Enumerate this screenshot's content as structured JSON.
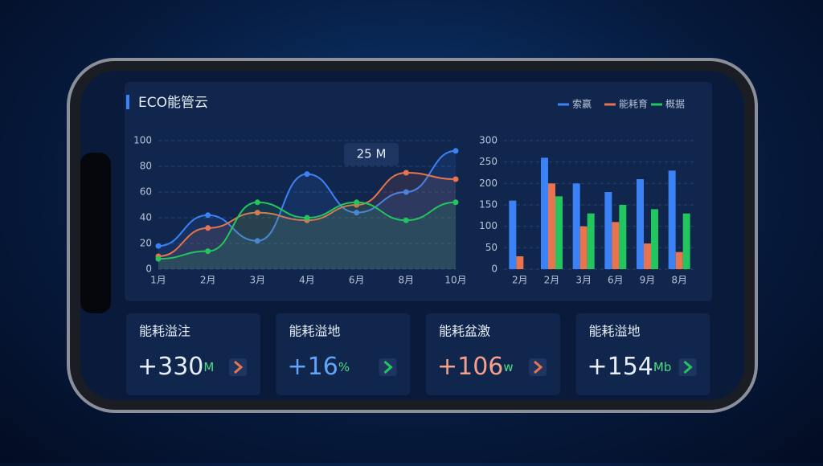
{
  "header": {
    "title": "ECO能管云"
  },
  "chart_data": [
    {
      "type": "line",
      "categories": [
        "1月",
        "2月",
        "3月",
        "4月",
        "6月",
        "8月",
        "10月"
      ],
      "series": [
        {
          "name": "索赢",
          "color": "#3b82f6",
          "values": [
            18,
            42,
            22,
            74,
            44,
            60,
            92
          ]
        },
        {
          "name": "能耗育",
          "color": "#e8744f",
          "values": [
            10,
            32,
            44,
            38,
            50,
            75,
            70
          ]
        },
        {
          "name": "概据",
          "color": "#22c55e",
          "values": [
            8,
            14,
            52,
            40,
            52,
            38,
            52
          ]
        }
      ],
      "ylim": [
        0,
        100
      ],
      "yticks": [
        0,
        20,
        40,
        60,
        80,
        100
      ],
      "grid": true,
      "annotation": "25 M"
    },
    {
      "type": "bar",
      "categories": [
        "2月",
        "2月",
        "3月",
        "6月",
        "9月",
        "8月"
      ],
      "series": [
        {
          "color": "#3b82f6",
          "values": [
            160,
            260,
            200,
            180,
            210,
            230
          ]
        },
        {
          "color": "#e8744f",
          "values": [
            30,
            200,
            100,
            110,
            60,
            40
          ]
        },
        {
          "color": "#22c55e",
          "values": [
            0,
            170,
            130,
            150,
            140,
            130
          ]
        }
      ],
      "ylim": [
        0,
        300
      ],
      "yticks": [
        0,
        50,
        100,
        150,
        200,
        250,
        300
      ],
      "grid": true
    }
  ],
  "cards": [
    {
      "label": "能耗溢注",
      "value": "+330",
      "unit": "M"
    },
    {
      "label": "能耗溢地",
      "value": "+16",
      "unit": "%"
    },
    {
      "label": "能耗盆激",
      "value": "+106",
      "unit": "w"
    },
    {
      "label": "能耗溢地",
      "value": "+154",
      "unit": "Mb"
    }
  ]
}
